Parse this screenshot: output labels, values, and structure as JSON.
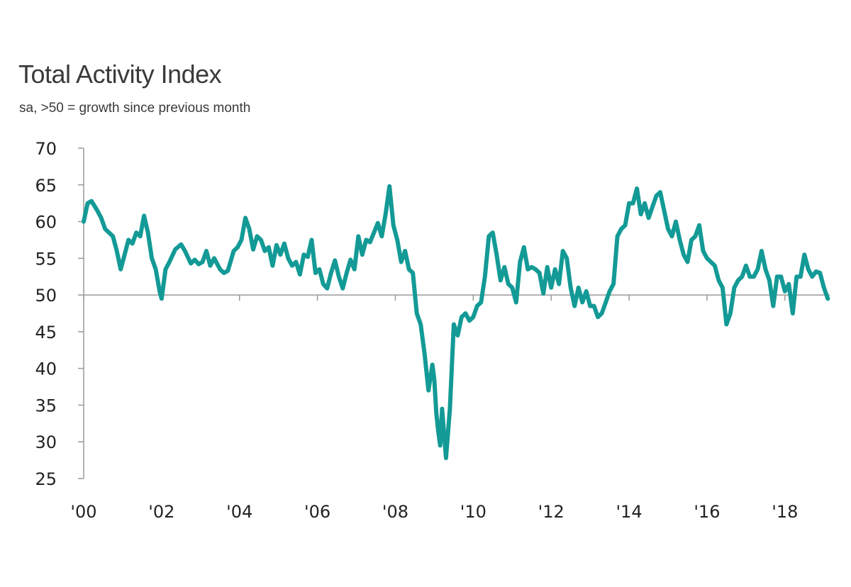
{
  "chart_data": {
    "type": "line",
    "title": "Total Activity Index",
    "subtitle": "sa, >50 = growth since previous month",
    "xlabel": "",
    "ylabel": "",
    "ylim": [
      25,
      70
    ],
    "xlim": [
      2000.0,
      2019.15
    ],
    "yticks": [
      70,
      65,
      60,
      55,
      50,
      45,
      40,
      35,
      30,
      25
    ],
    "xticks": [
      {
        "label": "'00",
        "year": 2000
      },
      {
        "label": "'02",
        "year": 2002
      },
      {
        "label": "'04",
        "year": 2004
      },
      {
        "label": "'06",
        "year": 2006
      },
      {
        "label": "'08",
        "year": 2008
      },
      {
        "label": "'10",
        "year": 2010
      },
      {
        "label": "'12",
        "year": 2012
      },
      {
        "label": "'14",
        "year": 2014
      },
      {
        "label": "'16",
        "year": 2016
      },
      {
        "label": "'18",
        "year": 2018
      }
    ],
    "reference_line": 50,
    "colors": {
      "line": "#139a96",
      "axis": "#9a9a9a",
      "reference": "#9a9a9a"
    },
    "grid": false,
    "series": [
      {
        "x": [
          2000.0,
          2000.1,
          2000.2,
          2000.35,
          2000.45,
          2000.55,
          2000.65,
          2000.75,
          2000.85,
          2000.95,
          2001.05,
          2001.15,
          2001.25,
          2001.35,
          2001.45,
          2001.55,
          2001.65,
          2001.75,
          2001.85,
          2001.95,
          2002.0,
          2002.1,
          2002.2,
          2002.35,
          2002.5,
          2002.6,
          2002.75,
          2002.85,
          2002.95,
          2003.05,
          2003.15,
          2003.25,
          2003.35,
          2003.5,
          2003.6,
          2003.7,
          2003.85,
          2003.95,
          2004.05,
          2004.15,
          2004.25,
          2004.35,
          2004.45,
          2004.55,
          2004.65,
          2004.75,
          2004.85,
          2004.95,
          2005.05,
          2005.15,
          2005.25,
          2005.35,
          2005.45,
          2005.55,
          2005.65,
          2005.75,
          2005.85,
          2005.95,
          2006.05,
          2006.15,
          2006.25,
          2006.35,
          2006.45,
          2006.55,
          2006.65,
          2006.75,
          2006.85,
          2006.95,
          2007.05,
          2007.15,
          2007.25,
          2007.35,
          2007.45,
          2007.55,
          2007.65,
          2007.75,
          2007.85,
          2007.95,
          2008.05,
          2008.15,
          2008.25,
          2008.35,
          2008.45,
          2008.55,
          2008.65,
          2008.75,
          2008.85,
          2008.95,
          2009.0,
          2009.05,
          2009.1,
          2009.15,
          2009.2,
          2009.3,
          2009.4,
          2009.5,
          2009.6,
          2009.7,
          2009.8,
          2009.9,
          2010.0,
          2010.1,
          2010.2,
          2010.3,
          2010.4,
          2010.5,
          2010.6,
          2010.7,
          2010.8,
          2010.9,
          2011.0,
          2011.1,
          2011.2,
          2011.3,
          2011.4,
          2011.5,
          2011.6,
          2011.7,
          2011.8,
          2011.9,
          2012.0,
          2012.1,
          2012.2,
          2012.3,
          2012.4,
          2012.5,
          2012.6,
          2012.7,
          2012.8,
          2012.9,
          2013.0,
          2013.1,
          2013.2,
          2013.3,
          2013.4,
          2013.5,
          2013.6,
          2013.7,
          2013.8,
          2013.9,
          2014.0,
          2014.1,
          2014.2,
          2014.3,
          2014.4,
          2014.5,
          2014.6,
          2014.7,
          2014.8,
          2014.9,
          2015.0,
          2015.1,
          2015.2,
          2015.3,
          2015.4,
          2015.5,
          2015.6,
          2015.7,
          2015.8,
          2015.9,
          2016.0,
          2016.1,
          2016.2,
          2016.3,
          2016.4,
          2016.5,
          2016.6,
          2016.7,
          2016.8,
          2016.9,
          2017.0,
          2017.1,
          2017.2,
          2017.3,
          2017.4,
          2017.5,
          2017.6,
          2017.7,
          2017.8,
          2017.9,
          2018.0,
          2018.1,
          2018.2,
          2018.3,
          2018.4,
          2018.5,
          2018.6,
          2018.7,
          2018.8,
          2018.9,
          2019.0,
          2019.1
        ],
        "y": [
          60.0,
          62.5,
          62.8,
          61.5,
          60.5,
          59.0,
          58.5,
          58.0,
          56.0,
          53.5,
          55.5,
          57.5,
          57.0,
          58.5,
          58.0,
          60.8,
          58.5,
          55.0,
          53.5,
          50.5,
          49.5,
          53.5,
          54.5,
          56.2,
          56.9,
          56.0,
          54.3,
          54.8,
          54.2,
          54.5,
          56.0,
          54.0,
          55.0,
          53.5,
          53.0,
          53.3,
          56.0,
          56.5,
          57.5,
          60.5,
          59.0,
          56.2,
          58.0,
          57.5,
          56.0,
          56.5,
          54.0,
          56.8,
          55.5,
          57.0,
          55.0,
          54.0,
          54.5,
          52.8,
          55.5,
          55.2,
          57.5,
          53.0,
          53.5,
          51.5,
          50.9,
          53.0,
          54.7,
          52.5,
          50.9,
          53.0,
          54.8,
          53.5,
          58.0,
          55.5,
          57.5,
          57.2,
          58.5,
          59.8,
          58.0,
          61.0,
          64.8,
          59.5,
          57.5,
          54.5,
          56.0,
          53.5,
          53.0,
          47.5,
          46.0,
          42.0,
          37.0,
          40.5,
          38.5,
          34.0,
          31.5,
          29.5,
          34.5,
          27.8,
          34.5,
          46.0,
          44.5,
          47.0,
          47.5,
          46.5,
          47.0,
          48.5,
          49.0,
          52.5,
          58.0,
          58.5,
          55.5,
          52.0,
          53.8,
          51.5,
          51.0,
          49.0,
          54.5,
          56.5,
          53.5,
          53.8,
          53.5,
          53.0,
          50.2,
          53.8,
          51.0,
          53.5,
          51.5,
          56.0,
          55.0,
          51.0,
          48.5,
          51.0,
          49.0,
          50.5,
          48.5,
          48.5,
          47.0,
          47.5,
          49.0,
          50.5,
          51.5,
          58.0,
          59.0,
          59.5,
          62.5,
          62.5,
          64.5,
          61.0,
          62.5,
          60.5,
          62.0,
          63.5,
          64.0,
          61.5,
          59.0,
          58.0,
          60.0,
          57.5,
          55.5,
          54.5,
          57.5,
          58.0,
          59.5,
          56.0,
          55.0,
          54.5,
          54.0,
          52.0,
          51.0,
          46.0,
          47.5,
          51.0,
          52.0,
          52.5,
          54.0,
          52.5,
          52.5,
          53.5,
          56.0,
          53.5,
          52.0,
          48.5,
          52.5,
          52.5,
          50.5,
          51.5,
          47.5,
          52.5,
          52.5,
          55.5,
          53.5,
          52.5,
          53.2,
          53.0,
          51.0,
          49.5
        ]
      }
    ]
  }
}
